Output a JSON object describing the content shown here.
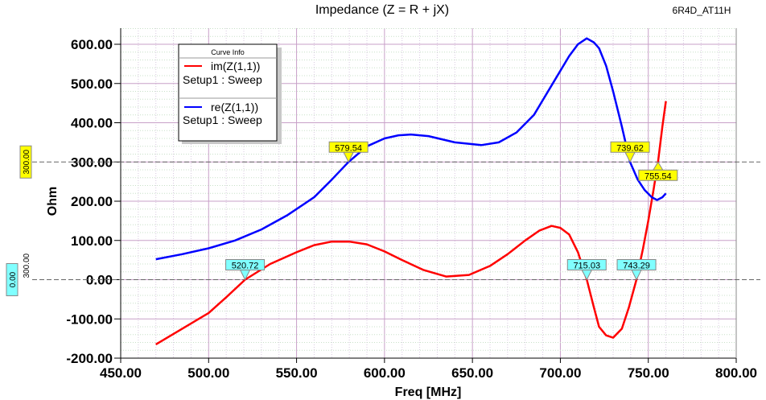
{
  "chart_data": {
    "type": "line",
    "title": "Impedance (Z = R + jX)",
    "corner_label": "6R4D_AT11H",
    "xlabel": "Freq [MHz]",
    "ylabel": "Ohm",
    "xlim": [
      450,
      800
    ],
    "ylim": [
      -200,
      600
    ],
    "x_ticks": [
      "450.00",
      "500.00",
      "550.00",
      "600.00",
      "650.00",
      "700.00",
      "750.00",
      "800.00"
    ],
    "y_ticks": [
      "-200.00",
      "-100.00",
      "0.00",
      "100.00",
      "200.00",
      "300.00",
      "400.00",
      "500.00",
      "600.00"
    ],
    "grid": true,
    "legend": {
      "title": "Curve Info",
      "placement": "top-left",
      "entries": [
        {
          "name": "im(Z(1,1))",
          "sub": "Setup1 : Sweep",
          "color": "#ff0000"
        },
        {
          "name": "re(Z(1,1))",
          "sub": "Setup1 : Sweep",
          "color": "#0000ff"
        }
      ]
    },
    "series": [
      {
        "name": "im(Z(1,1))",
        "color": "#ff0000",
        "x": [
          470,
          485,
          500,
          510,
          520.72,
          535,
          550,
          560,
          570,
          580,
          590,
          600,
          610,
          622,
          635,
          648,
          660,
          670,
          680,
          688,
          695,
          700,
          705,
          710,
          715.03,
          719,
          722,
          726,
          730,
          735,
          739,
          743.29,
          747,
          750,
          753,
          755.54,
          758,
          760
        ],
        "y": [
          -165,
          -125,
          -85,
          -45,
          0,
          40,
          70,
          88,
          97,
          97,
          90,
          72,
          50,
          25,
          8,
          12,
          35,
          65,
          100,
          125,
          137,
          132,
          115,
          70,
          0,
          -70,
          -120,
          -142,
          -148,
          -125,
          -70,
          0,
          80,
          150,
          230,
          300,
          390,
          455
        ]
      },
      {
        "name": "re(Z(1,1))",
        "color": "#0000ff",
        "x": [
          470,
          485,
          500,
          515,
          530,
          545,
          560,
          570,
          579.54,
          590,
          600,
          608,
          615,
          625,
          640,
          655,
          665,
          675,
          685,
          695,
          705,
          710,
          715,
          719,
          722,
          726,
          730,
          735,
          739.62,
          744,
          748,
          752,
          755,
          758,
          760
        ],
        "y": [
          52,
          65,
          80,
          100,
          128,
          165,
          210,
          255,
          300,
          340,
          360,
          368,
          370,
          366,
          350,
          343,
          350,
          375,
          420,
          495,
          570,
          600,
          615,
          605,
          590,
          545,
          480,
          390,
          300,
          255,
          228,
          210,
          203,
          210,
          220
        ]
      }
    ],
    "h_lines": [
      {
        "value": 300,
        "label": "300.00",
        "color": "#ffff00"
      },
      {
        "value": 0,
        "label": "0.00",
        "sub_label": "300.00",
        "color": "#80ffff"
      }
    ],
    "markers": [
      {
        "x": 579.54,
        "y": 300,
        "label": "579.54",
        "color": "#ffff00"
      },
      {
        "x": 739.62,
        "y": 300,
        "label": "739.62",
        "color": "#ffff00"
      },
      {
        "x": 755.54,
        "y": 300,
        "label": "755.54",
        "color": "#ffff00",
        "below": true
      },
      {
        "x": 520.72,
        "y": 0,
        "label": "520.72",
        "color": "#80ffff"
      },
      {
        "x": 715.03,
        "y": 0,
        "label": "715.03",
        "color": "#80ffff"
      },
      {
        "x": 743.29,
        "y": 0,
        "label": "743.29",
        "color": "#80ffff"
      }
    ]
  }
}
